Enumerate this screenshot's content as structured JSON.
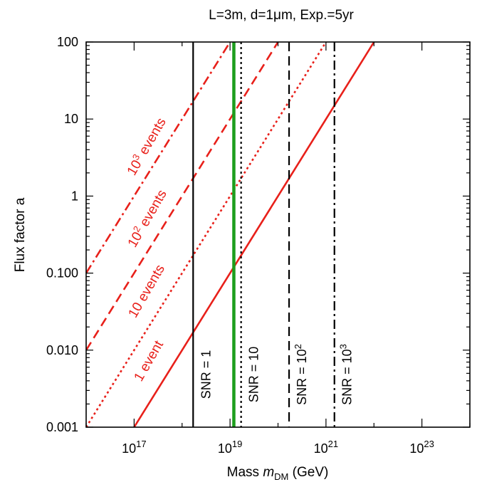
{
  "chart_data": {
    "type": "line",
    "title": "L=3m, d=1μm, Exp.=5yr",
    "xlabel": "Mass m_DM (GeV)",
    "xlabel_parts": {
      "prefix": "Mass ",
      "var": "m",
      "sub": "DM",
      "suffix": " (GeV)"
    },
    "ylabel": "Flux factor a",
    "x_scale": "log",
    "y_scale": "log",
    "xlim": [
      1e+16,
      1e+24
    ],
    "ylim": [
      0.001,
      100
    ],
    "x_ticks": [
      {
        "value": 1e+17,
        "base": "10",
        "exp": "17"
      },
      {
        "value": 1e+19,
        "base": "10",
        "exp": "19"
      },
      {
        "value": 1e+21,
        "base": "10",
        "exp": "21"
      },
      {
        "value": 1e+23,
        "base": "10",
        "exp": "23"
      }
    ],
    "y_ticks": [
      {
        "value": 0.001,
        "label": "0.001"
      },
      {
        "value": 0.01,
        "label": "0.010"
      },
      {
        "value": 0.1,
        "label": "0.100"
      },
      {
        "value": 1,
        "label": "1"
      },
      {
        "value": 10,
        "label": "10"
      },
      {
        "value": 100,
        "label": "100"
      }
    ],
    "grid": false,
    "colors": {
      "events": "#e8201a",
      "snr": "#000000",
      "green": "#1d9e1d"
    },
    "event_lines": [
      {
        "label": "1 event",
        "label_parts": {
          "base": "1",
          "exp": "",
          "suffix": " event"
        },
        "style": "solid",
        "x": [
          1e+17,
          1e+22
        ],
        "y": [
          0.001,
          100
        ]
      },
      {
        "label": "10 events",
        "label_parts": {
          "base": "10",
          "exp": "",
          "suffix": " events"
        },
        "style": "dotted",
        "x": [
          1e+16,
          1e+21
        ],
        "y": [
          0.001,
          100
        ]
      },
      {
        "label": "10² events",
        "label_parts": {
          "base": "10",
          "exp": "2",
          "suffix": " events"
        },
        "style": "dashed",
        "x": [
          1e+16,
          1e+20
        ],
        "y": [
          0.01,
          100
        ]
      },
      {
        "label": "10³ events",
        "label_parts": {
          "base": "10",
          "exp": "3",
          "suffix": " events"
        },
        "style": "dashdot",
        "x": [
          1e+16,
          1e+19
        ],
        "y": [
          0.1,
          100
        ]
      }
    ],
    "snr_lines": [
      {
        "label": "SNR = 1",
        "label_parts": {
          "prefix": "SNR = ",
          "base": "1",
          "exp": ""
        },
        "style": "solid",
        "x": 1.7e+18
      },
      {
        "label": "SNR = 10",
        "label_parts": {
          "prefix": "SNR = ",
          "base": "10",
          "exp": ""
        },
        "style": "dotted",
        "x": 1.7e+19
      },
      {
        "label": "SNR = 10²",
        "label_parts": {
          "prefix": "SNR = ",
          "base": "10",
          "exp": "2"
        },
        "style": "dashed",
        "x": 1.7e+20
      },
      {
        "label": "SNR = 10³",
        "label_parts": {
          "prefix": "SNR = ",
          "base": "10",
          "exp": "3"
        },
        "style": "dashdot",
        "x": 1.5e+21
      }
    ],
    "green_line": {
      "x": 1.2e+19
    }
  }
}
